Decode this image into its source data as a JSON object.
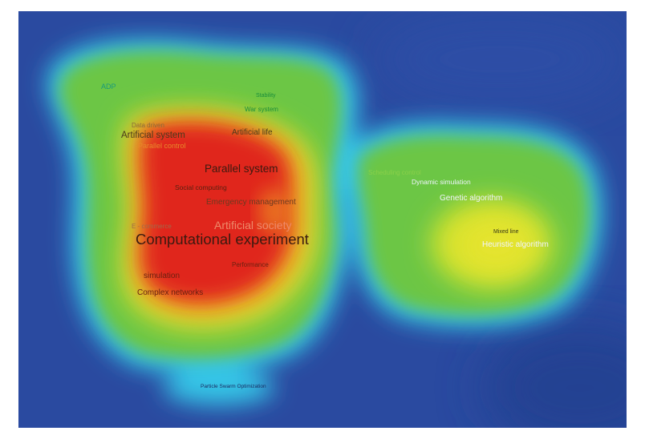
{
  "map": {
    "colors": {
      "background": "#2a4aa0",
      "halo": "#34c4e6",
      "low_density": "#6cc644",
      "medium_density": "#d4e22e",
      "high_density": "#f0a826",
      "peak_density": "#e0261c"
    },
    "keywords": [
      {
        "id": "adp",
        "text": "ADP",
        "color": "#1a9a7a"
      },
      {
        "id": "stability",
        "text": "Stability",
        "color": "#1a8e3a"
      },
      {
        "id": "war-system",
        "text": "War system",
        "color": "#1a8e3a"
      },
      {
        "id": "data-driven",
        "text": "Data driven",
        "color": "#8a6a3a"
      },
      {
        "id": "artificial-system",
        "text": "Artificial system",
        "color": "#4a3a1a"
      },
      {
        "id": "parallel-control",
        "text": "Parallel control",
        "color": "#e88a2a"
      },
      {
        "id": "artificial-life",
        "text": "Artificial life",
        "color": "#4a3a1a"
      },
      {
        "id": "parallel-system",
        "text": "Parallel system",
        "color": "#3a1a10"
      },
      {
        "id": "social-computing",
        "text": "Social computing",
        "color": "#5a2010"
      },
      {
        "id": "emergency-management",
        "text": "Emergency management",
        "color": "#6a3a20"
      },
      {
        "id": "e-commerce",
        "text": "E - commerce",
        "color": "#a06a4a"
      },
      {
        "id": "artificial-society",
        "text": "Artificial society",
        "color": "#ee8a6a"
      },
      {
        "id": "computational-experiment",
        "text": "Computational experiment",
        "color": "#3a1a10"
      },
      {
        "id": "performance",
        "text": "Performance",
        "color": "#6a2010"
      },
      {
        "id": "simulation",
        "text": "simulation",
        "color": "#6a2010"
      },
      {
        "id": "complex-networks",
        "text": "Complex networks",
        "color": "#6a2010"
      },
      {
        "id": "particle-swarm-optimization",
        "text": "Particle Swarm Optimization",
        "color": "#1a2a60"
      },
      {
        "id": "scheduling-control",
        "text": "Scheduling control",
        "color": "#8ad04a"
      },
      {
        "id": "dynamic-simulation",
        "text": "Dynamic simulation",
        "color": "#f0f4ff"
      },
      {
        "id": "genetic-algorithm",
        "text": "Genetic algorithm",
        "color": "#f0f4ff"
      },
      {
        "id": "mixed-line",
        "text": "Mixed line",
        "color": "#3a3a1a"
      },
      {
        "id": "heuristic-algorithm",
        "text": "Heuristic algorithm",
        "color": "#f0f4ff"
      }
    ]
  }
}
